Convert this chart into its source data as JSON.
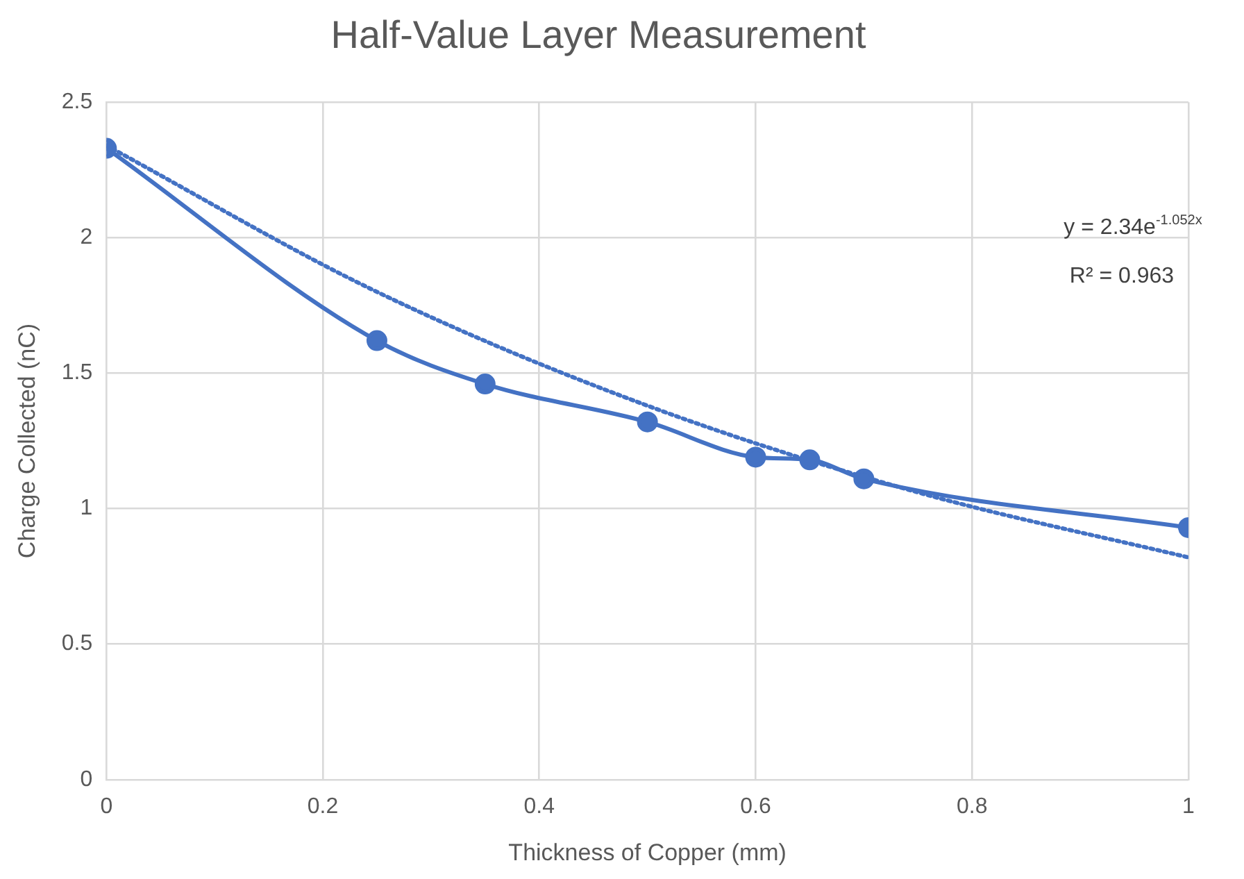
{
  "chart_data": {
    "type": "line",
    "title": "Half-Value Layer Measurement",
    "xlabel": "Thickness of Copper (mm)",
    "ylabel": "Charge Collected (nC)",
    "x": [
      0,
      0.25,
      0.35,
      0.5,
      0.6,
      0.65,
      0.7,
      1
    ],
    "series": [
      {
        "color": "#4472c4",
        "values": [
          2.33,
          1.62,
          1.46,
          1.32,
          1.19,
          1.18,
          1.11,
          0.93
        ],
        "marker": "circle",
        "line_style": "solid"
      },
      {
        "type": "line",
        "color": "#4472c4",
        "x": [
          0,
          0.25,
          0.5,
          0.75,
          1
        ],
        "values": [
          2.34,
          1.8,
          1.38,
          1.06,
          0.82
        ],
        "marker": "none",
        "line_style": "dotted"
      }
    ],
    "xlim": [
      0,
      1
    ],
    "xticks": [
      0,
      0.2,
      0.4,
      0.6,
      0.8,
      1
    ],
    "ylim": [
      0,
      2.5
    ],
    "yticks": [
      0,
      0.5,
      1,
      1.5,
      2,
      2.5
    ],
    "grid": true,
    "legend": false,
    "annotations": [
      "y = 2.34e$^{-1.052x}$",
      "R² = 0.963"
    ]
  }
}
